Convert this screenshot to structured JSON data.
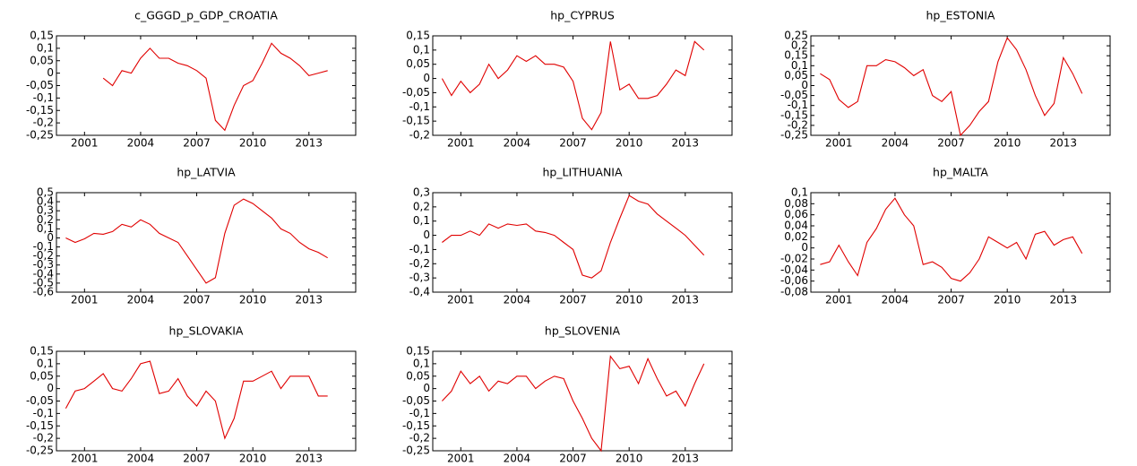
{
  "chart_data": [
    {
      "type": "line",
      "title": "c_GGGD_p_GDP_CROATIA",
      "color": "#e00000",
      "x": [
        2000,
        2000.5,
        2001,
        2001.5,
        2002,
        2002.5,
        2003,
        2003.5,
        2004,
        2004.5,
        2005,
        2005.5,
        2006,
        2006.5,
        2007,
        2007.5,
        2008,
        2008.5,
        2009,
        2009.5,
        2010,
        2010.5,
        2011,
        2011.5,
        2012,
        2012.5,
        2013,
        2013.5,
        2014
      ],
      "values": [
        null,
        null,
        null,
        null,
        -0.02,
        -0.05,
        0.01,
        0.0,
        0.06,
        0.1,
        0.06,
        0.06,
        0.04,
        0.03,
        0.01,
        -0.02,
        -0.19,
        -0.23,
        -0.13,
        -0.05,
        -0.03,
        0.04,
        0.12,
        0.08,
        0.06,
        0.03,
        -0.01,
        0.0,
        0.01
      ],
      "xlim": [
        1999.5,
        2015.5
      ],
      "xticks": [
        2001,
        2004,
        2007,
        2010,
        2013
      ],
      "ylim": [
        -0.25,
        0.15
      ],
      "yticks": [
        {
          "value": 0.15,
          "label": "0,15"
        },
        {
          "value": 0.1,
          "label": "0,1"
        },
        {
          "value": 0.05,
          "label": "0,05"
        },
        0,
        {
          "value": -0.05,
          "label": "-0,05"
        },
        {
          "value": -0.1,
          "label": "-0,1"
        },
        {
          "value": -0.15,
          "label": "-0,15"
        },
        {
          "value": -0.2,
          "label": "-0,2"
        },
        {
          "value": -0.25,
          "label": "-0,25"
        }
      ]
    },
    {
      "type": "line",
      "title": "hp_CYPRUS",
      "color": "#e00000",
      "x": [
        2000,
        2000.5,
        2001,
        2001.5,
        2002,
        2002.5,
        2003,
        2003.5,
        2004,
        2004.5,
        2005,
        2005.5,
        2006,
        2006.5,
        2007,
        2007.5,
        2008,
        2008.5,
        2009,
        2009.5,
        2010,
        2010.5,
        2011,
        2011.5,
        2012,
        2012.5,
        2013,
        2013.5,
        2014
      ],
      "values": [
        0.0,
        -0.06,
        -0.01,
        -0.05,
        -0.02,
        0.05,
        0.0,
        0.03,
        0.08,
        0.06,
        0.08,
        0.05,
        0.05,
        0.04,
        -0.01,
        -0.14,
        -0.18,
        -0.12,
        0.13,
        -0.04,
        -0.02,
        -0.07,
        -0.07,
        -0.06,
        -0.02,
        0.03,
        0.01,
        0.13,
        0.1
      ],
      "xlim": [
        1999.5,
        2015.5
      ],
      "xticks": [
        2001,
        2004,
        2007,
        2010,
        2013
      ],
      "ylim": [
        -0.2,
        0.15
      ],
      "yticks": [
        {
          "value": 0.15,
          "label": "0,15"
        },
        {
          "value": 0.1,
          "label": "0,1"
        },
        {
          "value": 0.05,
          "label": "0,05"
        },
        0,
        {
          "value": -0.05,
          "label": "-0,05"
        },
        {
          "value": -0.1,
          "label": "-0,1"
        },
        {
          "value": -0.15,
          "label": "-0,15"
        },
        {
          "value": -0.2,
          "label": "-0,2"
        }
      ]
    },
    {
      "type": "line",
      "title": "hp_ESTONIA",
      "color": "#e00000",
      "x": [
        2000,
        2000.5,
        2001,
        2001.5,
        2002,
        2002.5,
        2003,
        2003.5,
        2004,
        2004.5,
        2005,
        2005.5,
        2006,
        2006.5,
        2007,
        2007.5,
        2008,
        2008.5,
        2009,
        2009.5,
        2010,
        2010.5,
        2011,
        2011.5,
        2012,
        2012.5,
        2013,
        2013.5,
        2014
      ],
      "values": [
        0.06,
        0.03,
        -0.07,
        -0.11,
        -0.08,
        0.1,
        0.1,
        0.13,
        0.12,
        0.09,
        0.05,
        0.08,
        -0.05,
        -0.08,
        -0.03,
        -0.25,
        -0.2,
        -0.13,
        -0.08,
        0.12,
        0.24,
        0.18,
        0.08,
        -0.05,
        -0.15,
        -0.09,
        0.14,
        0.06,
        -0.04
      ],
      "xlim": [
        1999.5,
        2015.5
      ],
      "xticks": [
        2001,
        2004,
        2007,
        2010,
        2013
      ],
      "ylim": [
        -0.25,
        0.25
      ],
      "yticks": [
        {
          "value": 0.25,
          "label": "0,25"
        },
        {
          "value": 0.2,
          "label": "0,2"
        },
        {
          "value": 0.15,
          "label": "0,15"
        },
        {
          "value": 0.1,
          "label": "0,1"
        },
        {
          "value": 0.05,
          "label": "0,05"
        },
        0,
        {
          "value": -0.05,
          "label": "-0,05"
        },
        {
          "value": -0.1,
          "label": "-0,1"
        },
        {
          "value": -0.15,
          "label": "-0,15"
        },
        {
          "value": -0.2,
          "label": "-0,2"
        },
        {
          "value": -0.25,
          "label": "-0,25"
        }
      ]
    },
    {
      "type": "line",
      "title": "hp_LATVIA",
      "color": "#e00000",
      "x": [
        2000,
        2000.5,
        2001,
        2001.5,
        2002,
        2002.5,
        2003,
        2003.5,
        2004,
        2004.5,
        2005,
        2005.5,
        2006,
        2006.5,
        2007,
        2007.5,
        2008,
        2008.5,
        2009,
        2009.5,
        2010,
        2010.5,
        2011,
        2011.5,
        2012,
        2012.5,
        2013,
        2013.5,
        2014
      ],
      "values": [
        0.0,
        -0.05,
        -0.01,
        0.05,
        0.04,
        0.07,
        0.15,
        0.12,
        0.2,
        0.15,
        0.05,
        0.0,
        -0.05,
        -0.2,
        -0.35,
        -0.5,
        -0.44,
        0.05,
        0.36,
        0.43,
        0.38,
        0.3,
        0.22,
        0.1,
        0.05,
        -0.05,
        -0.12,
        -0.16,
        -0.22
      ],
      "xlim": [
        1999.5,
        2015.5
      ],
      "xticks": [
        2001,
        2004,
        2007,
        2010,
        2013
      ],
      "ylim": [
        -0.6,
        0.5
      ],
      "yticks": [
        {
          "value": 0.5,
          "label": "0,5"
        },
        {
          "value": 0.4,
          "label": "0,4"
        },
        {
          "value": 0.3,
          "label": "0,3"
        },
        {
          "value": 0.2,
          "label": "0,2"
        },
        {
          "value": 0.1,
          "label": "0,1"
        },
        0,
        {
          "value": -0.1,
          "label": "-0,1"
        },
        {
          "value": -0.2,
          "label": "-0,2"
        },
        {
          "value": -0.3,
          "label": "-0,3"
        },
        {
          "value": -0.4,
          "label": "-0,4"
        },
        {
          "value": -0.5,
          "label": "-0,5"
        },
        {
          "value": -0.6,
          "label": "-0,6"
        }
      ]
    },
    {
      "type": "line",
      "title": "hp_LITHUANIA",
      "color": "#e00000",
      "x": [
        2000,
        2000.5,
        2001,
        2001.5,
        2002,
        2002.5,
        2003,
        2003.5,
        2004,
        2004.5,
        2005,
        2005.5,
        2006,
        2006.5,
        2007,
        2007.5,
        2008,
        2008.5,
        2009,
        2009.5,
        2010,
        2010.5,
        2011,
        2011.5,
        2012,
        2012.5,
        2013,
        2013.5,
        2014
      ],
      "values": [
        -0.05,
        0.0,
        0.0,
        0.03,
        0.0,
        0.08,
        0.05,
        0.08,
        0.07,
        0.08,
        0.03,
        0.02,
        0.0,
        -0.05,
        -0.1,
        -0.28,
        -0.3,
        -0.25,
        -0.05,
        0.12,
        0.28,
        0.24,
        0.22,
        0.15,
        0.1,
        0.05,
        0.0,
        -0.07,
        -0.14
      ],
      "xlim": [
        1999.5,
        2015.5
      ],
      "xticks": [
        2001,
        2004,
        2007,
        2010,
        2013
      ],
      "ylim": [
        -0.4,
        0.3
      ],
      "yticks": [
        {
          "value": 0.3,
          "label": "0,3"
        },
        {
          "value": 0.2,
          "label": "0,2"
        },
        {
          "value": 0.1,
          "label": "0,1"
        },
        0,
        {
          "value": -0.1,
          "label": "-0,1"
        },
        {
          "value": -0.2,
          "label": "-0,2"
        },
        {
          "value": -0.3,
          "label": "-0,3"
        },
        {
          "value": -0.4,
          "label": "-0,4"
        }
      ]
    },
    {
      "type": "line",
      "title": "hp_MALTA",
      "color": "#e00000",
      "x": [
        2000,
        2000.5,
        2001,
        2001.5,
        2002,
        2002.5,
        2003,
        2003.5,
        2004,
        2004.5,
        2005,
        2005.5,
        2006,
        2006.5,
        2007,
        2007.5,
        2008,
        2008.5,
        2009,
        2009.5,
        2010,
        2010.5,
        2011,
        2011.5,
        2012,
        2012.5,
        2013,
        2013.5,
        2014
      ],
      "values": [
        -0.03,
        -0.025,
        0.005,
        -0.025,
        -0.05,
        0.01,
        0.035,
        0.07,
        0.09,
        0.06,
        0.04,
        -0.03,
        -0.025,
        -0.035,
        -0.055,
        -0.06,
        -0.045,
        -0.02,
        0.02,
        0.01,
        0.0,
        0.01,
        -0.02,
        0.025,
        0.03,
        0.005,
        0.015,
        0.02,
        -0.01
      ],
      "xlim": [
        1999.5,
        2015.5
      ],
      "xticks": [
        2001,
        2004,
        2007,
        2010,
        2013
      ],
      "ylim": [
        -0.08,
        0.1
      ],
      "yticks": [
        {
          "value": 0.1,
          "label": "0,1"
        },
        {
          "value": 0.08,
          "label": "0,08"
        },
        {
          "value": 0.06,
          "label": "0,06"
        },
        {
          "value": 0.04,
          "label": "0,04"
        },
        {
          "value": 0.02,
          "label": "0,02"
        },
        0,
        {
          "value": -0.02,
          "label": "-0,02"
        },
        {
          "value": -0.04,
          "label": "-0,04"
        },
        {
          "value": -0.06,
          "label": "-0,06"
        },
        {
          "value": -0.08,
          "label": "-0,08"
        }
      ]
    },
    {
      "type": "line",
      "title": "hp_SLOVAKIA",
      "color": "#e00000",
      "x": [
        2000,
        2000.5,
        2001,
        2001.5,
        2002,
        2002.5,
        2003,
        2003.5,
        2004,
        2004.5,
        2005,
        2005.5,
        2006,
        2006.5,
        2007,
        2007.5,
        2008,
        2008.5,
        2009,
        2009.5,
        2010,
        2010.5,
        2011,
        2011.5,
        2012,
        2012.5,
        2013,
        2013.5,
        2014
      ],
      "values": [
        -0.08,
        -0.01,
        0.0,
        0.03,
        0.06,
        0.0,
        -0.01,
        0.04,
        0.1,
        0.11,
        -0.02,
        -0.01,
        0.04,
        -0.03,
        -0.07,
        -0.01,
        -0.05,
        -0.2,
        -0.12,
        0.03,
        0.03,
        0.05,
        0.07,
        0.0,
        0.05,
        0.05,
        0.05,
        -0.03,
        -0.03
      ],
      "xlim": [
        1999.5,
        2015.5
      ],
      "xticks": [
        2001,
        2004,
        2007,
        2010,
        2013
      ],
      "ylim": [
        -0.25,
        0.15
      ],
      "yticks": [
        {
          "value": 0.15,
          "label": "0,15"
        },
        {
          "value": 0.1,
          "label": "0,1"
        },
        {
          "value": 0.05,
          "label": "0,05"
        },
        0,
        {
          "value": -0.05,
          "label": "-0,05"
        },
        {
          "value": -0.1,
          "label": "-0,1"
        },
        {
          "value": -0.15,
          "label": "-0,15"
        },
        {
          "value": -0.2,
          "label": "-0,2"
        },
        {
          "value": -0.25,
          "label": "-0,25"
        }
      ]
    },
    {
      "type": "line",
      "title": "hp_SLOVENIA",
      "color": "#e00000",
      "x": [
        2000,
        2000.5,
        2001,
        2001.5,
        2002,
        2002.5,
        2003,
        2003.5,
        2004,
        2004.5,
        2005,
        2005.5,
        2006,
        2006.5,
        2007,
        2007.5,
        2008,
        2008.5,
        2009,
        2009.5,
        2010,
        2010.5,
        2011,
        2011.5,
        2012,
        2012.5,
        2013,
        2013.5,
        2014
      ],
      "values": [
        -0.05,
        -0.01,
        0.07,
        0.02,
        0.05,
        -0.01,
        0.03,
        0.02,
        0.05,
        0.05,
        0.0,
        0.03,
        0.05,
        0.04,
        -0.05,
        -0.12,
        -0.2,
        -0.25,
        0.13,
        0.08,
        0.09,
        0.02,
        0.12,
        0.04,
        -0.03,
        -0.01,
        -0.07,
        0.02,
        0.1
      ],
      "xlim": [
        1999.5,
        2015.5
      ],
      "xticks": [
        2001,
        2004,
        2007,
        2010,
        2013
      ],
      "ylim": [
        -0.25,
        0.15
      ],
      "yticks": [
        {
          "value": 0.15,
          "label": "0,15"
        },
        {
          "value": 0.1,
          "label": "0,1"
        },
        {
          "value": 0.05,
          "label": "0,05"
        },
        0,
        {
          "value": -0.05,
          "label": "-0,05"
        },
        {
          "value": -0.1,
          "label": "-0,1"
        },
        {
          "value": -0.15,
          "label": "-0,15"
        },
        {
          "value": -0.2,
          "label": "-0,2"
        },
        {
          "value": -0.25,
          "label": "-0,25"
        }
      ]
    }
  ]
}
